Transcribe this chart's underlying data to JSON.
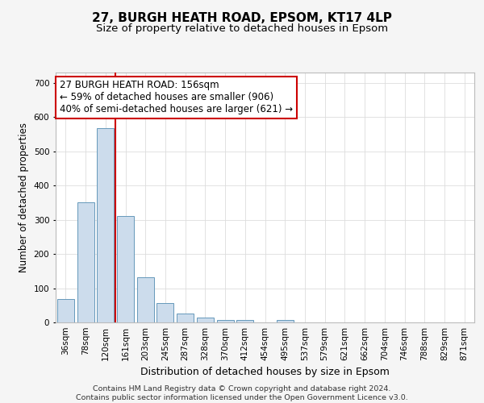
{
  "title1": "27, BURGH HEATH ROAD, EPSOM, KT17 4LP",
  "title2": "Size of property relative to detached houses in Epsom",
  "xlabel": "Distribution of detached houses by size in Epsom",
  "ylabel": "Number of detached properties",
  "bins": [
    "36sqm",
    "78sqm",
    "120sqm",
    "161sqm",
    "203sqm",
    "245sqm",
    "287sqm",
    "328sqm",
    "370sqm",
    "412sqm",
    "454sqm",
    "495sqm",
    "537sqm",
    "579sqm",
    "621sqm",
    "662sqm",
    "704sqm",
    "746sqm",
    "788sqm",
    "829sqm",
    "871sqm"
  ],
  "values": [
    68,
    352,
    568,
    312,
    132,
    57,
    26,
    13,
    7,
    6,
    0,
    8,
    0,
    0,
    0,
    0,
    0,
    0,
    0,
    0,
    0
  ],
  "bar_color": "#ccdcec",
  "bar_edge_color": "#6699bb",
  "vline_color": "#cc0000",
  "annotation_line1": "27 BURGH HEATH ROAD: 156sqm",
  "annotation_line2": "← 59% of detached houses are smaller (906)",
  "annotation_line3": "40% of semi-detached houses are larger (621) →",
  "annotation_box_color": "#ffffff",
  "annotation_box_edge": "#cc0000",
  "ylim": [
    0,
    730
  ],
  "yticks": [
    0,
    100,
    200,
    300,
    400,
    500,
    600,
    700
  ],
  "background_color": "#f5f5f5",
  "plot_bg_color": "#ffffff",
  "grid_color": "#dddddd",
  "footer": "Contains HM Land Registry data © Crown copyright and database right 2024.\nContains public sector information licensed under the Open Government Licence v3.0.",
  "title1_fontsize": 11,
  "title2_fontsize": 9.5,
  "tick_fontsize": 7.5,
  "ylabel_fontsize": 8.5,
  "xlabel_fontsize": 9,
  "footer_fontsize": 6.8,
  "ann_fontsize": 8.5
}
